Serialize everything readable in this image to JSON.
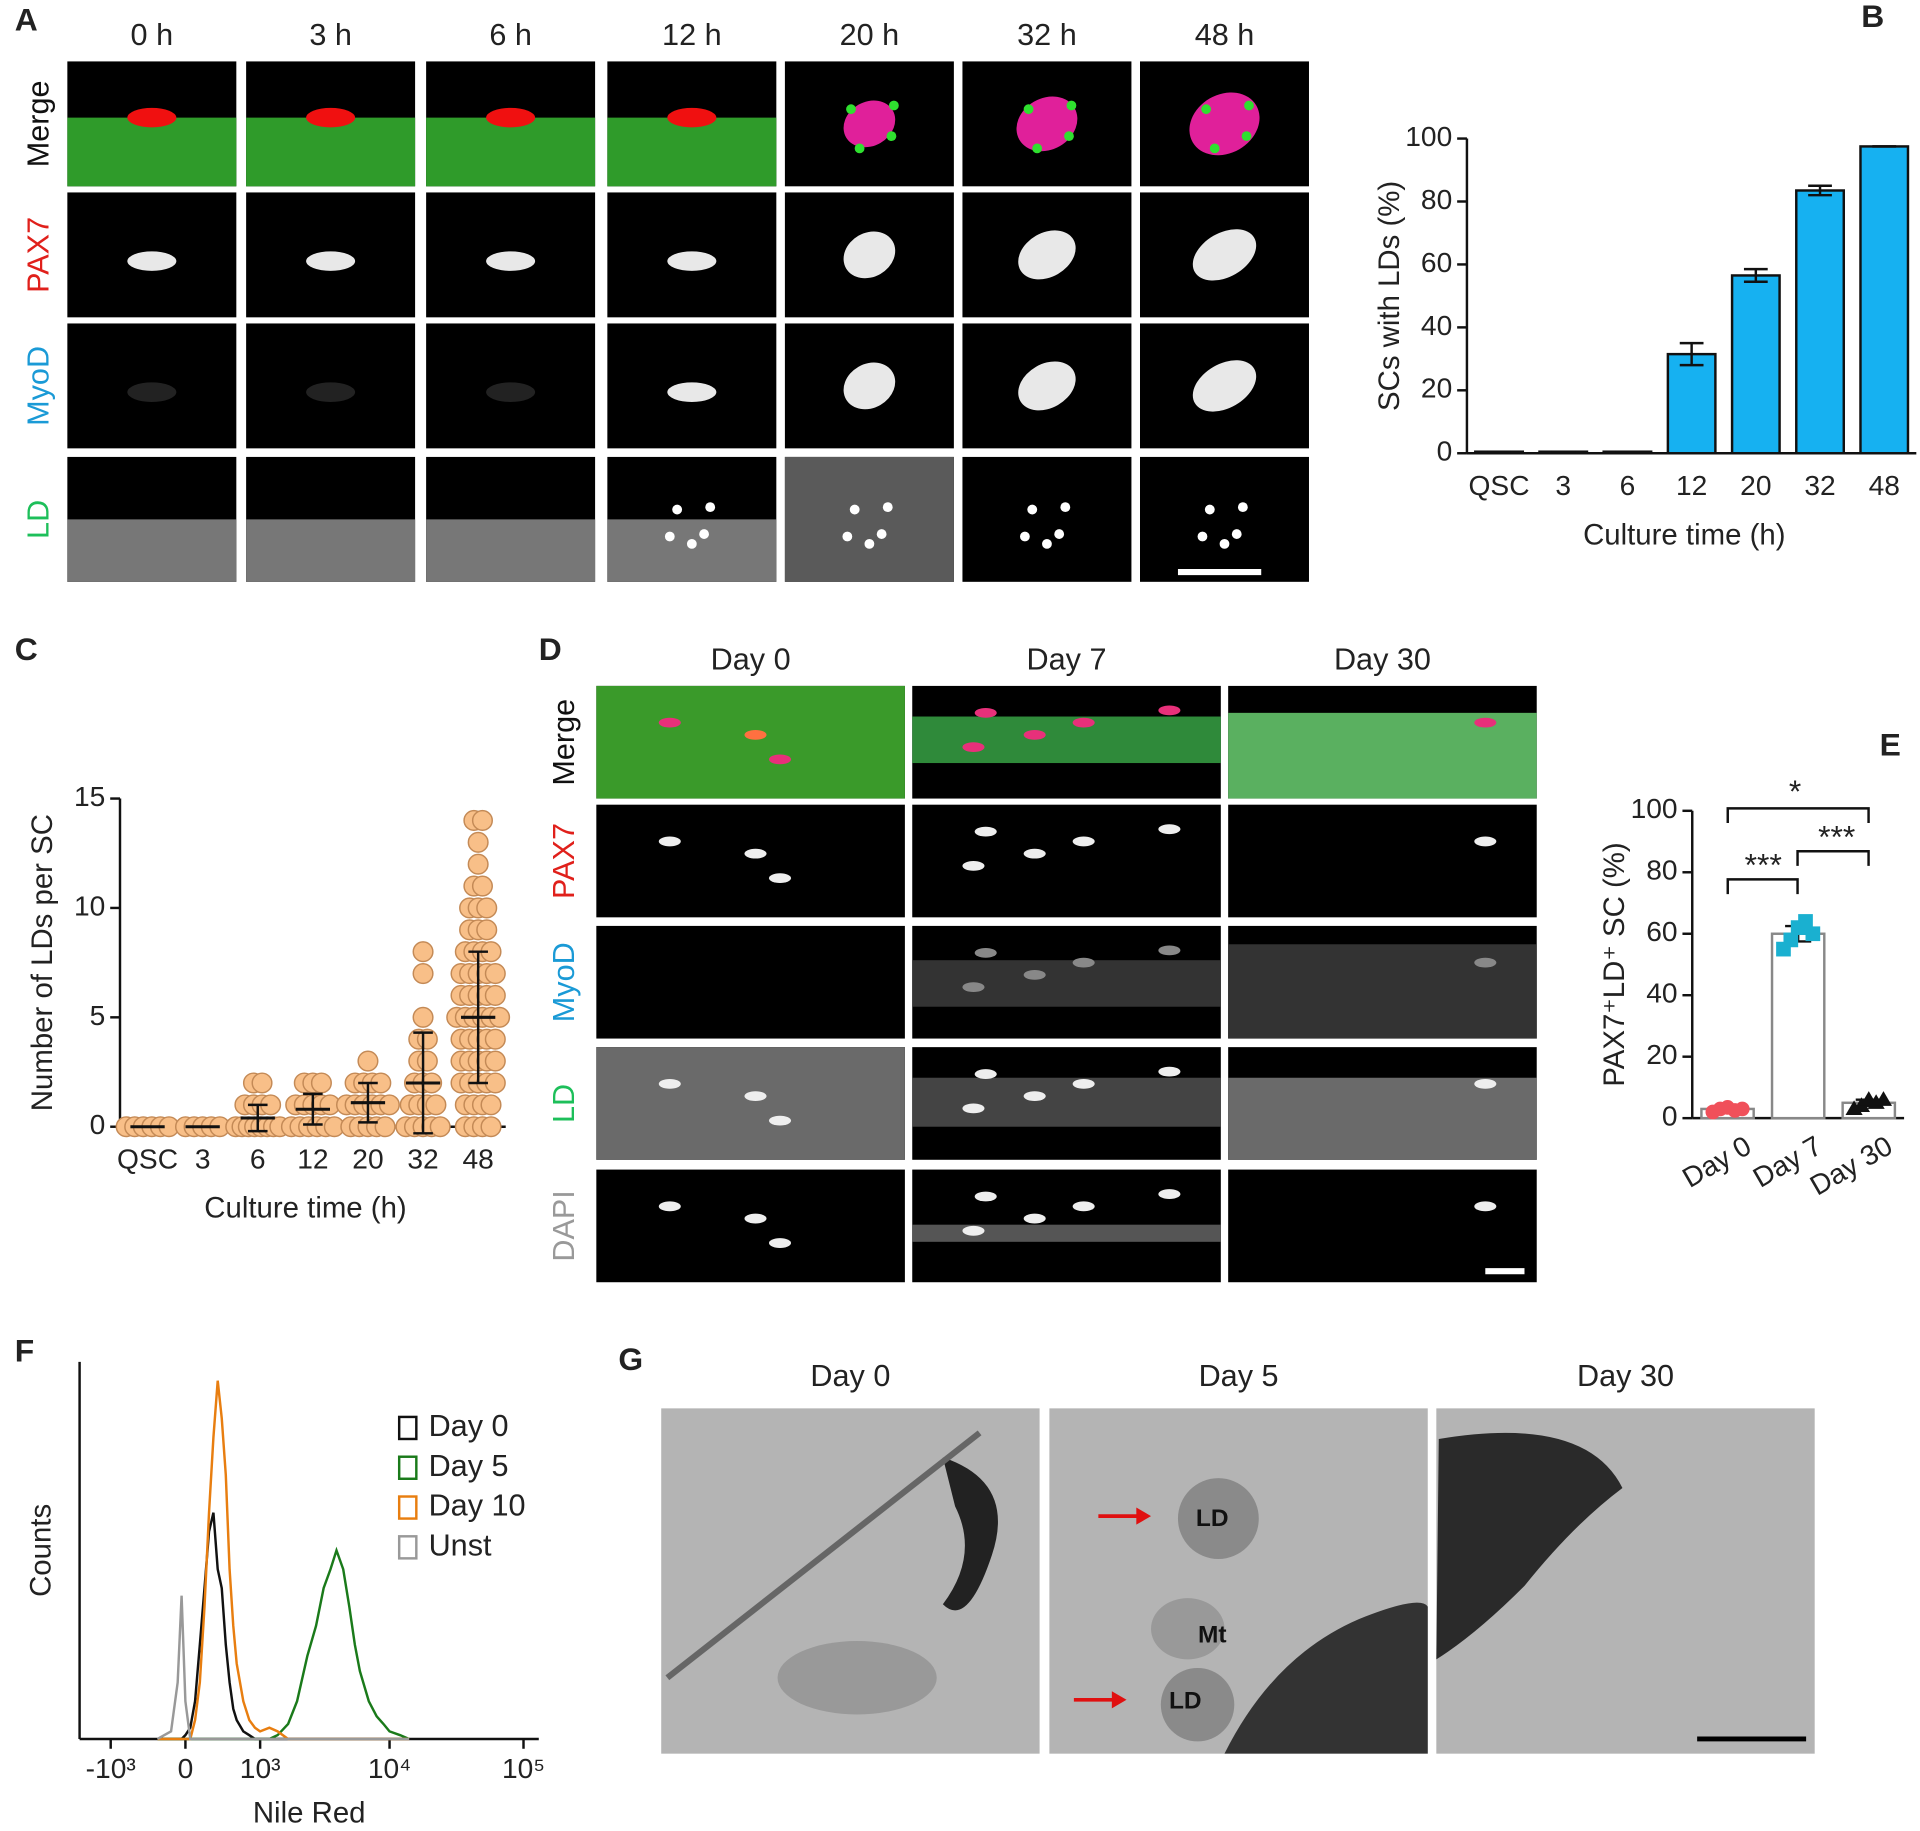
{
  "panels": {
    "A": {
      "label": "A",
      "columns": [
        "0 h",
        "3 h",
        "6 h",
        "12 h",
        "20 h",
        "32 h",
        "48 h"
      ],
      "rows": [
        "Merge",
        "PAX7",
        "MyoD",
        "LD"
      ]
    },
    "D": {
      "label": "D",
      "columns": [
        "Day 0",
        "Day 7",
        "Day 30"
      ],
      "rows": [
        "Merge",
        "PAX7",
        "MyoD",
        "LD",
        "DAPI"
      ]
    },
    "G": {
      "label": "G",
      "columns": [
        "Day 0",
        "Day 5",
        "Day 30"
      ],
      "annotations": [
        "LD",
        "Mt",
        "LD"
      ]
    }
  },
  "chart_data": [
    {
      "type": "bar",
      "panel_label": "B",
      "categories": [
        "QSC",
        "3",
        "6",
        "12",
        "20",
        "32",
        "48"
      ],
      "values": [
        0.5,
        0.5,
        0.5,
        31.5,
        56.5,
        83.5,
        97.5
      ],
      "errors": [
        0,
        0,
        0,
        3.5,
        2,
        1.5,
        0
      ],
      "color": "#16b1f1",
      "edge_color": "#111",
      "ylim": [
        0,
        100
      ],
      "yticks": [
        0,
        20,
        40,
        60,
        80,
        100
      ],
      "ylabel": "SCs with LDs (%)",
      "xlabel": "Culture time (h)"
    },
    {
      "type": "strip",
      "panel_label": "C",
      "categories": [
        "QSC",
        "3",
        "6",
        "12",
        "20",
        "32",
        "48"
      ],
      "groups": [
        [
          0,
          0,
          0,
          0,
          0,
          0
        ],
        [
          0,
          0,
          0,
          0,
          0
        ],
        [
          0,
          0,
          0,
          0,
          0,
          0,
          0,
          0,
          1,
          1,
          1,
          1,
          2,
          2
        ],
        [
          0,
          0,
          0,
          0,
          0,
          0,
          1,
          1,
          1,
          1,
          1,
          2,
          2,
          2
        ],
        [
          0,
          0,
          0,
          0,
          0,
          1,
          1,
          1,
          1,
          1,
          1,
          2,
          2,
          2,
          2,
          3
        ],
        [
          0,
          0,
          0,
          0,
          0,
          1,
          1,
          1,
          1,
          2,
          2,
          2,
          3,
          3,
          4,
          4,
          5,
          7,
          8
        ],
        [
          0,
          0,
          0,
          0,
          1,
          1,
          1,
          1,
          2,
          2,
          2,
          2,
          2,
          3,
          3,
          3,
          3,
          3,
          4,
          4,
          4,
          4,
          4,
          5,
          5,
          5,
          5,
          5,
          5,
          6,
          6,
          6,
          6,
          6,
          7,
          7,
          7,
          7,
          7,
          8,
          8,
          8,
          8,
          9,
          9,
          9,
          10,
          10,
          10,
          11,
          11,
          12,
          13,
          14,
          14
        ]
      ],
      "means": [
        0,
        0,
        0.4,
        0.8,
        1.1,
        2,
        5
      ],
      "errors": [
        0,
        0,
        0.6,
        0.7,
        0.9,
        2.3,
        3
      ],
      "color": "#f8bf88",
      "edge_color": "#c48a56",
      "ylim": [
        0,
        15
      ],
      "yticks": [
        0,
        5,
        10,
        15
      ],
      "ylabel": "Number of LDs per SC",
      "xlabel": "Culture time (h)"
    },
    {
      "type": "bar",
      "panel_label": "E",
      "categories": [
        "Day 0",
        "Day 7",
        "Day 30"
      ],
      "values": [
        3,
        60,
        5
      ],
      "errors": [
        0.8,
        2.5,
        1
      ],
      "points": [
        [
          2,
          3,
          3.5,
          2.5,
          3
        ],
        [
          55,
          58,
          62,
          64,
          60
        ],
        [
          3,
          4,
          6,
          5,
          6
        ]
      ],
      "point_colors": [
        "#f0505a",
        "#1ab0d0",
        "#111111"
      ],
      "markers": [
        "circle",
        "square",
        "triangle"
      ],
      "color": "#ffffff",
      "edge_color": "#888888",
      "ylim": [
        0,
        100
      ],
      "yticks": [
        0,
        20,
        40,
        60,
        80,
        100
      ],
      "ylabel": "PAX7⁺LD⁺ SC (%)",
      "annotations": [
        "*",
        "***",
        "***"
      ]
    },
    {
      "type": "line",
      "panel_label": "F",
      "x": [
        -300,
        -150,
        -80,
        -40,
        0,
        50,
        100,
        150,
        200,
        250,
        300,
        350,
        400,
        450,
        500,
        550,
        600,
        700,
        800,
        900,
        1000,
        1200,
        1400,
        1700,
        2000,
        2400,
        2800,
        3200,
        3600,
        4000,
        4500,
        5000,
        5500,
        6000,
        7000,
        8000,
        9000,
        10000,
        12000,
        14000
      ],
      "series": [
        {
          "name": "Day 0",
          "color": "#111111",
          "values": [
            0,
            0,
            0,
            0,
            1,
            3,
            10,
            25,
            40,
            55,
            60,
            45,
            40,
            25,
            15,
            8,
            5,
            2,
            1,
            0,
            0,
            0,
            0,
            0,
            0,
            0,
            0,
            0,
            0,
            0,
            0,
            0,
            0,
            0,
            0,
            0,
            0,
            0,
            0,
            0
          ]
        },
        {
          "name": "Day 5",
          "color": "#1a7a1a",
          "values": [
            0,
            0,
            0,
            0,
            0,
            0,
            0,
            0,
            0,
            0,
            0,
            0,
            0,
            0,
            0,
            0,
            0,
            0,
            0,
            0,
            0,
            0,
            1,
            4,
            10,
            22,
            30,
            40,
            45,
            50,
            45,
            35,
            25,
            18,
            10,
            6,
            4,
            2,
            1,
            0
          ]
        },
        {
          "name": "Day 10",
          "color": "#e87e10",
          "values": [
            0,
            0,
            0,
            0,
            0,
            0,
            5,
            15,
            35,
            60,
            80,
            95,
            85,
            70,
            45,
            30,
            20,
            10,
            5,
            3,
            2,
            3,
            2,
            0,
            0,
            0,
            0,
            0,
            0,
            0,
            0,
            0,
            0,
            0,
            0,
            0,
            0,
            0,
            0,
            0
          ]
        },
        {
          "name": "Unst",
          "color": "#999999",
          "values": [
            0,
            2,
            15,
            38,
            10,
            0,
            0,
            0,
            0,
            0,
            0,
            0,
            0,
            0,
            0,
            0,
            0,
            0,
            0,
            0,
            0,
            0,
            0,
            0,
            0,
            0,
            0,
            0,
            0,
            0,
            0,
            0,
            0,
            0,
            0,
            0,
            0,
            0,
            0,
            0
          ]
        }
      ],
      "xscale": "biexponential",
      "xlim": [
        -1800,
        130000
      ],
      "xticks": [
        {
          "value": -1000,
          "label": "-10³"
        },
        0,
        {
          "value": 1000,
          "label": "10³"
        },
        {
          "value": 10000,
          "label": "10⁴"
        },
        {
          "value": 100000,
          "label": "10⁵"
        }
      ],
      "ylim": [
        0,
        100
      ],
      "xlabel": "Nile Red",
      "ylabel": "Counts"
    }
  ]
}
